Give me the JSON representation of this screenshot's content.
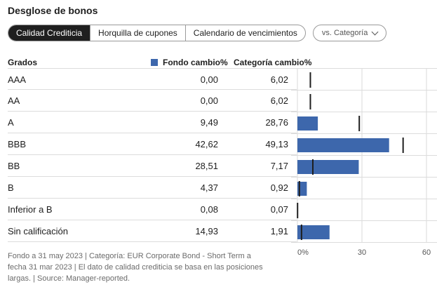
{
  "title": "Desglose de bonos",
  "tabs": [
    {
      "label": "Calidad Crediticia",
      "active": true
    },
    {
      "label": "Horquilla de cupones",
      "active": false
    },
    {
      "label": "Calendario de vencimientos",
      "active": false
    }
  ],
  "dropdown": {
    "label": "vs. Categoría"
  },
  "columns": {
    "grades": "Grados",
    "fondo": "Fondo  cambio%",
    "categoria": "Categoría  cambio%"
  },
  "rows": [
    {
      "grade": "AAA",
      "fund": "0,00",
      "category": "6,02"
    },
    {
      "grade": "AA",
      "fund": "0,00",
      "category": "6,02"
    },
    {
      "grade": "A",
      "fund": "9,49",
      "category": "28,76"
    },
    {
      "grade": "BBB",
      "fund": "42,62",
      "category": "49,13"
    },
    {
      "grade": "BB",
      "fund": "28,51",
      "category": "7,17"
    },
    {
      "grade": "B",
      "fund": "4,37",
      "category": "0,92"
    },
    {
      "grade": "Inferior a B",
      "fund": "0,08",
      "category": "0,07"
    },
    {
      "grade": "Sin calificación",
      "fund": "14,93",
      "category": "1,91"
    }
  ],
  "chart_data": {
    "type": "bar",
    "orientation": "horizontal",
    "categories": [
      "AAA",
      "AA",
      "A",
      "BBB",
      "BB",
      "B",
      "Inferior a B",
      "Sin calificación"
    ],
    "series": [
      {
        "name": "Fondo",
        "values": [
          0.0,
          0.0,
          9.49,
          42.62,
          28.51,
          4.37,
          0.08,
          14.93
        ],
        "color": "#3d67ac",
        "mark": "bar"
      },
      {
        "name": "Categoría",
        "values": [
          6.02,
          6.02,
          28.76,
          49.13,
          7.17,
          0.92,
          0.07,
          1.91
        ],
        "color": "#1e1e1e",
        "mark": "tick"
      }
    ],
    "xlim": [
      0,
      60
    ],
    "xticks": [
      {
        "value": 0,
        "label": "0%"
      },
      {
        "value": 30,
        "label": "30"
      },
      {
        "value": 60,
        "label": "60"
      }
    ],
    "grid": "vertical at ticks"
  },
  "footnote": "Fondo a 31 may 2023 | Categoría: EUR Corporate Bond - Short Term a fecha 31 mar 2023 | El dato de calidad crediticia se basa en las posiciones largas. | Source: Manager-reported."
}
